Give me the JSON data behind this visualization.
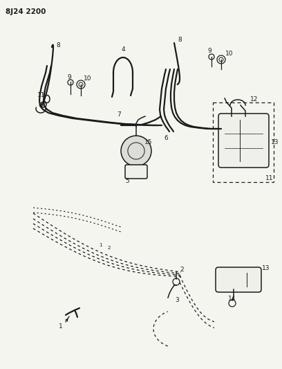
{
  "title": "8J24 2200",
  "bg_color": "#f5f5f0",
  "line_color": "#1a1a1a",
  "fig_width": 4.08,
  "fig_height": 5.33,
  "dpi": 100
}
